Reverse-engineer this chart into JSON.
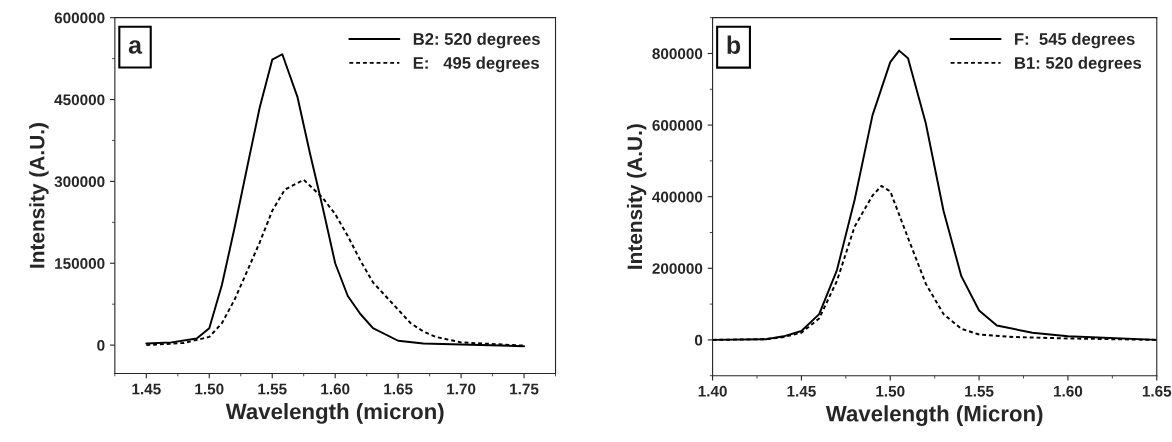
{
  "chart_data": [
    {
      "type": "line",
      "annotations": [
        "a"
      ],
      "xlabel": "Wavelength (micron)",
      "ylabel": "Intensity (A.U.)",
      "xlim": [
        1.425,
        1.775
      ],
      "ylim": [
        -52000,
        600000
      ],
      "xticks": [
        1.45,
        {
          "value": 1.5,
          "label": "1.50"
        },
        1.55,
        {
          "value": 1.6,
          "label": "1.60"
        },
        1.65,
        {
          "value": 1.7,
          "label": "1.70"
        },
        1.75
      ],
      "yticks": [
        0,
        150000,
        300000,
        450000,
        600000
      ],
      "legend": "top right",
      "series": [
        {
          "name": "B2: 520 degrees",
          "color": "#000000",
          "line_style": "solid",
          "x": [
            1.45,
            1.47,
            1.49,
            1.5,
            1.51,
            1.52,
            1.53,
            1.54,
            1.55,
            1.558,
            1.57,
            1.58,
            1.59,
            1.6,
            1.61,
            1.62,
            1.63,
            1.65,
            1.67,
            1.7,
            1.75
          ],
          "values": [
            3000,
            5000,
            12000,
            31000,
            110000,
            214000,
            325000,
            435000,
            523000,
            533000,
            455000,
            351000,
            253000,
            150000,
            90000,
            57000,
            31000,
            8000,
            3000,
            1000,
            -2000
          ]
        },
        {
          "name": "E:   495 degrees",
          "color": "#000000",
          "line_style": "dashed",
          "x": [
            1.45,
            1.48,
            1.5,
            1.51,
            1.52,
            1.53,
            1.54,
            1.55,
            1.56,
            1.575,
            1.59,
            1.6,
            1.61,
            1.62,
            1.63,
            1.64,
            1.65,
            1.66,
            1.67,
            1.68,
            1.7,
            1.75
          ],
          "values": [
            0,
            4000,
            15000,
            40000,
            83000,
            135000,
            188000,
            246000,
            285000,
            303000,
            270000,
            240000,
            200000,
            155000,
            115000,
            90000,
            65000,
            40000,
            25000,
            15000,
            5000,
            -1000
          ]
        }
      ]
    },
    {
      "type": "line",
      "annotations": [
        "b"
      ],
      "xlabel": "Wavelength (Micron)",
      "ylabel": "Intensity (A.U.)",
      "xlim": [
        1.4,
        1.65
      ],
      "ylim": [
        -100000,
        900000
      ],
      "xticks": [
        {
          "value": 1.4,
          "label": "1.40"
        },
        1.45,
        {
          "value": 1.5,
          "label": "1.50"
        },
        1.55,
        {
          "value": 1.6,
          "label": "1.60"
        },
        1.65
      ],
      "yticks": [
        0,
        200000,
        400000,
        600000,
        800000
      ],
      "legend": "top right",
      "series": [
        {
          "name": "F:  545 degrees",
          "color": "#000000",
          "line_style": "solid",
          "x": [
            1.4,
            1.43,
            1.44,
            1.45,
            1.46,
            1.47,
            1.48,
            1.49,
            1.5,
            1.505,
            1.51,
            1.52,
            1.53,
            1.54,
            1.55,
            1.56,
            1.58,
            1.6,
            1.65
          ],
          "values": [
            0,
            2000,
            10000,
            25000,
            72000,
            195000,
            392000,
            627000,
            776000,
            808000,
            787000,
            605000,
            360000,
            178000,
            82000,
            40000,
            20000,
            10000,
            0
          ]
        },
        {
          "name": "B1: 520 degrees",
          "color": "#000000",
          "line_style": "dashed",
          "x": [
            1.4,
            1.43,
            1.44,
            1.45,
            1.46,
            1.47,
            1.48,
            1.49,
            1.495,
            1.5,
            1.51,
            1.52,
            1.53,
            1.54,
            1.55,
            1.57,
            1.6,
            1.65
          ],
          "values": [
            0,
            2000,
            8000,
            20000,
            60000,
            165000,
            317000,
            403000,
            430000,
            415000,
            285000,
            157000,
            72000,
            31000,
            15000,
            8000,
            4000,
            0
          ]
        }
      ]
    }
  ]
}
